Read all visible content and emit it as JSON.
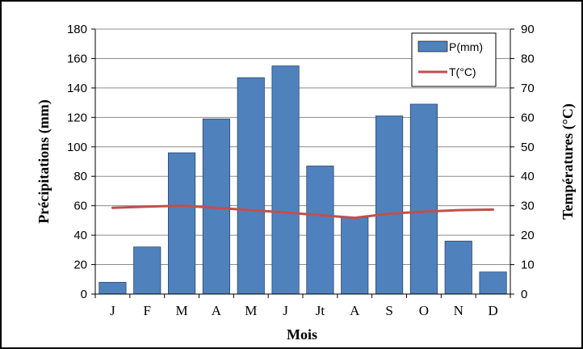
{
  "chart_data": {
    "type": "bar",
    "categories": [
      "J",
      "F",
      "M",
      "A",
      "M",
      "J",
      "Jt",
      "A",
      "S",
      "O",
      "N",
      "D"
    ],
    "series": [
      {
        "name": "P(mm)",
        "type": "bar",
        "axis": "left",
        "color": "#4F81BD",
        "values": [
          8,
          32,
          96,
          119,
          147,
          155,
          87,
          52,
          121,
          129,
          36,
          15
        ]
      },
      {
        "name": "T(°C)",
        "type": "line",
        "axis": "right",
        "color": "#C0504D",
        "values": [
          29.3,
          29.7,
          30.0,
          29.3,
          28.5,
          27.7,
          26.8,
          25.9,
          27.3,
          28.0,
          28.5,
          28.7
        ]
      }
    ],
    "xlabel": "Mois",
    "ylabel": "Précipitations (mm)",
    "y2label": "Températures (°C)",
    "ylim": [
      0,
      180
    ],
    "y2lim": [
      0,
      90
    ],
    "yticks": [
      "0",
      "20",
      "40",
      "60",
      "80",
      "100",
      "120",
      "140",
      "160",
      "180"
    ],
    "y2ticks": [
      "0",
      "10",
      "20",
      "30",
      "40",
      "50",
      "60",
      "70",
      "80",
      "90"
    ],
    "grid": true,
    "legend": "top-right"
  }
}
